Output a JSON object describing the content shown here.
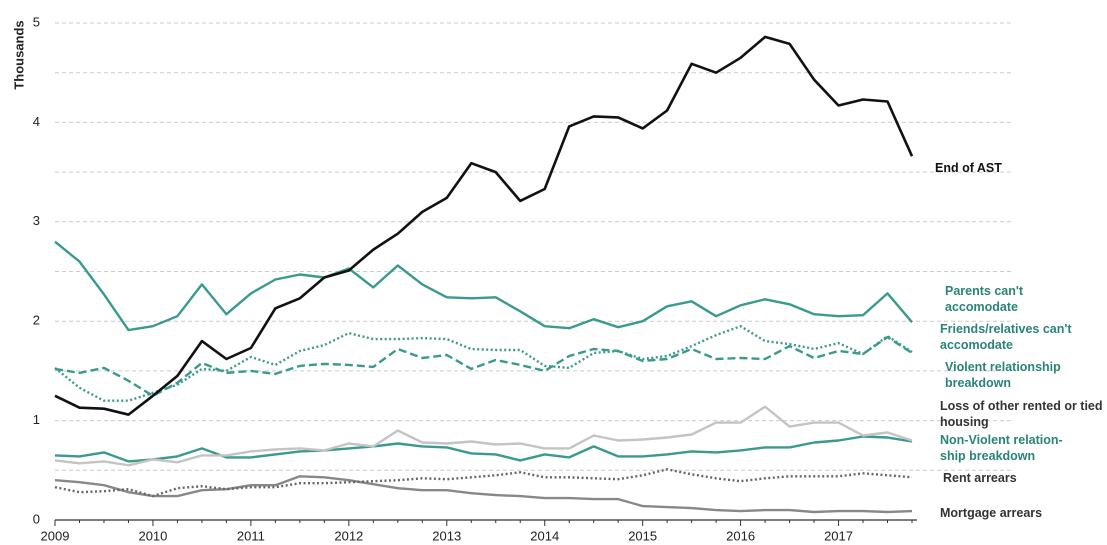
{
  "chart_data": {
    "type": "line",
    "y_label": "Thousands",
    "categories": [
      "2009",
      null,
      null,
      null,
      "2010",
      null,
      null,
      null,
      "2011",
      null,
      null,
      null,
      "2012",
      null,
      null,
      null,
      "2013",
      null,
      null,
      null,
      "2014",
      null,
      null,
      null,
      "2015",
      null,
      null,
      null,
      "2016",
      null,
      null,
      null,
      "2017",
      null,
      null,
      null
    ],
    "ylim": [
      0,
      5
    ],
    "yticks": [
      0,
      1,
      2,
      3,
      4,
      5
    ],
    "minor_yticks": [
      0.5,
      1.5,
      2.5,
      3.5,
      4.5
    ],
    "grid": true,
    "series": [
      {
        "name": "End of AST",
        "color": "#111111",
        "style": "solid",
        "label_color": "#111111",
        "values": [
          1.25,
          1.13,
          1.12,
          1.06,
          1.25,
          1.45,
          1.8,
          1.62,
          1.73,
          2.13,
          2.23,
          2.44,
          2.51,
          2.72,
          2.88,
          3.1,
          3.24,
          3.59,
          3.5,
          3.21,
          3.33,
          3.96,
          4.06,
          4.05,
          3.94,
          4.12,
          4.59,
          4.5,
          4.65,
          4.86,
          4.79,
          4.43,
          4.17,
          4.23,
          4.21,
          3.66
        ]
      },
      {
        "name": "Parents can't\naccomodate",
        "color": "#3a9a8e",
        "style": "solid",
        "label_color": "#2a8478",
        "values": [
          2.8,
          2.6,
          2.27,
          1.91,
          1.95,
          2.05,
          2.37,
          2.07,
          2.28,
          2.42,
          2.47,
          2.44,
          2.53,
          2.34,
          2.56,
          2.37,
          2.24,
          2.23,
          2.24,
          2.1,
          1.95,
          1.93,
          2.02,
          1.94,
          2.0,
          2.15,
          2.2,
          2.05,
          2.16,
          2.22,
          2.17,
          2.07,
          2.05,
          2.06,
          2.28,
          1.99
        ]
      },
      {
        "name": "Friends/relatives can't\naccomodate",
        "color": "#3a9a8e",
        "style": "dotted",
        "label_color": "#2a8478",
        "values": [
          1.53,
          1.33,
          1.2,
          1.2,
          1.28,
          1.36,
          1.52,
          1.5,
          1.64,
          1.56,
          1.7,
          1.76,
          1.88,
          1.82,
          1.82,
          1.83,
          1.82,
          1.72,
          1.71,
          1.71,
          1.55,
          1.53,
          1.68,
          1.7,
          1.62,
          1.65,
          1.75,
          1.86,
          1.95,
          1.8,
          1.77,
          1.72,
          1.78,
          1.67,
          1.85,
          1.69
        ]
      },
      {
        "name": "Violent relationship\nbreakdown",
        "color": "#3a9a8e",
        "style": "dashed",
        "label_color": "#2a8478",
        "values": [
          1.52,
          1.48,
          1.53,
          1.4,
          1.25,
          1.38,
          1.58,
          1.48,
          1.5,
          1.47,
          1.55,
          1.57,
          1.56,
          1.54,
          1.72,
          1.63,
          1.66,
          1.52,
          1.61,
          1.56,
          1.5,
          1.65,
          1.72,
          1.7,
          1.6,
          1.62,
          1.72,
          1.62,
          1.63,
          1.62,
          1.75,
          1.63,
          1.7,
          1.67,
          1.84,
          1.68
        ]
      },
      {
        "name": "Loss of other rented or tied\nhousing",
        "color": "#c4c4c4",
        "style": "solid",
        "label_color": "#333333",
        "values": [
          0.6,
          0.57,
          0.59,
          0.55,
          0.61,
          0.58,
          0.65,
          0.65,
          0.69,
          0.71,
          0.72,
          0.7,
          0.77,
          0.74,
          0.9,
          0.78,
          0.77,
          0.79,
          0.76,
          0.77,
          0.72,
          0.72,
          0.85,
          0.8,
          0.81,
          0.83,
          0.86,
          0.98,
          0.98,
          1.14,
          0.94,
          0.98,
          0.98,
          0.85,
          0.88,
          0.8
        ]
      },
      {
        "name": "Non-Violent relation-\nship breakdown",
        "color": "#3a9a8e",
        "style": "solid",
        "label_color": "#2a8478",
        "values": [
          0.65,
          0.64,
          0.68,
          0.59,
          0.61,
          0.64,
          0.72,
          0.63,
          0.63,
          0.66,
          0.69,
          0.7,
          0.72,
          0.74,
          0.77,
          0.74,
          0.73,
          0.67,
          0.66,
          0.6,
          0.66,
          0.63,
          0.74,
          0.64,
          0.64,
          0.66,
          0.69,
          0.68,
          0.7,
          0.73,
          0.73,
          0.78,
          0.8,
          0.84,
          0.83,
          0.79
        ]
      },
      {
        "name": "Rent arrears",
        "color": "#666666",
        "style": "dotted",
        "label_color": "#333333",
        "values": [
          0.33,
          0.28,
          0.29,
          0.31,
          0.24,
          0.32,
          0.34,
          0.31,
          0.33,
          0.33,
          0.37,
          0.37,
          0.38,
          0.39,
          0.4,
          0.42,
          0.41,
          0.43,
          0.45,
          0.48,
          0.43,
          0.43,
          0.42,
          0.41,
          0.45,
          0.51,
          0.46,
          0.42,
          0.39,
          0.42,
          0.44,
          0.44,
          0.44,
          0.47,
          0.45,
          0.43
        ]
      },
      {
        "name": "Mortgage arrears",
        "color": "#888888",
        "style": "solid",
        "label_color": "#333333",
        "values": [
          0.4,
          0.38,
          0.35,
          0.28,
          0.24,
          0.24,
          0.3,
          0.31,
          0.35,
          0.35,
          0.44,
          0.43,
          0.4,
          0.36,
          0.32,
          0.3,
          0.3,
          0.27,
          0.25,
          0.24,
          0.22,
          0.22,
          0.21,
          0.21,
          0.14,
          0.13,
          0.12,
          0.1,
          0.09,
          0.1,
          0.1,
          0.08,
          0.09,
          0.09,
          0.08,
          0.09
        ]
      }
    ]
  }
}
